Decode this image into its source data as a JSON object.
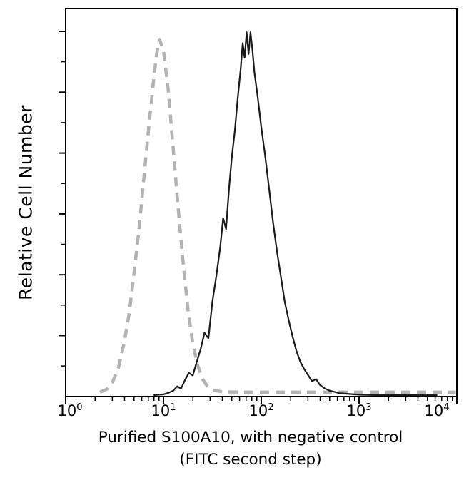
{
  "chart_data": {
    "type": "line",
    "title": "",
    "ylabel": "Relative Cell Number",
    "xlabel_line1": "Purified S100A10, with negative control",
    "xlabel_line2": "(FITC second step)",
    "x_scale": "log",
    "x_log_range": [
      0,
      4
    ],
    "y_range": [
      0,
      1.065
    ],
    "grid": false,
    "legend": "none",
    "x_ticks": [
      {
        "base": "10",
        "exp": "0"
      },
      {
        "base": "10",
        "exp": "1"
      },
      {
        "base": "10",
        "exp": "2"
      },
      {
        "base": "10",
        "exp": "3"
      },
      {
        "base": "10",
        "exp": "4"
      }
    ],
    "series": [
      {
        "name": "negative control (FITC second step)",
        "style": "dashed",
        "color": "#b3b3b3",
        "width": 4.5,
        "points": [
          [
            0.35,
            0.012
          ],
          [
            0.42,
            0.02
          ],
          [
            0.48,
            0.04
          ],
          [
            0.54,
            0.08
          ],
          [
            0.6,
            0.15
          ],
          [
            0.65,
            0.23
          ],
          [
            0.7,
            0.34
          ],
          [
            0.75,
            0.46
          ],
          [
            0.8,
            0.6
          ],
          [
            0.85,
            0.74
          ],
          [
            0.9,
            0.87
          ],
          [
            0.93,
            0.94
          ],
          [
            0.96,
            0.98
          ],
          [
            1.0,
            0.95
          ],
          [
            1.05,
            0.84
          ],
          [
            1.1,
            0.68
          ],
          [
            1.15,
            0.52
          ],
          [
            1.2,
            0.37
          ],
          [
            1.25,
            0.24
          ],
          [
            1.3,
            0.145
          ],
          [
            1.35,
            0.085
          ],
          [
            1.4,
            0.048
          ],
          [
            1.45,
            0.028
          ],
          [
            1.5,
            0.018
          ],
          [
            1.6,
            0.013
          ],
          [
            1.8,
            0.012
          ],
          [
            2.1,
            0.012
          ],
          [
            2.4,
            0.012
          ],
          [
            2.7,
            0.012
          ],
          [
            3.0,
            0.012
          ],
          [
            3.3,
            0.012
          ],
          [
            3.6,
            0.012
          ],
          [
            3.9,
            0.012
          ],
          [
            3.99,
            0.012
          ]
        ]
      },
      {
        "name": "Purified S100A10",
        "style": "solid",
        "color": "#1a1a1a",
        "width": 2.2,
        "points": [
          [
            0.9,
            0.004
          ],
          [
            1.0,
            0.006
          ],
          [
            1.05,
            0.01
          ],
          [
            1.1,
            0.016
          ],
          [
            1.14,
            0.028
          ],
          [
            1.18,
            0.022
          ],
          [
            1.22,
            0.045
          ],
          [
            1.26,
            0.065
          ],
          [
            1.3,
            0.058
          ],
          [
            1.34,
            0.095
          ],
          [
            1.38,
            0.13
          ],
          [
            1.42,
            0.175
          ],
          [
            1.46,
            0.16
          ],
          [
            1.5,
            0.26
          ],
          [
            1.54,
            0.33
          ],
          [
            1.58,
            0.41
          ],
          [
            1.61,
            0.49
          ],
          [
            1.64,
            0.46
          ],
          [
            1.67,
            0.57
          ],
          [
            1.7,
            0.66
          ],
          [
            1.73,
            0.73
          ],
          [
            1.76,
            0.82
          ],
          [
            1.79,
            0.9
          ],
          [
            1.81,
            0.97
          ],
          [
            1.83,
            0.93
          ],
          [
            1.85,
            1.0
          ],
          [
            1.87,
            0.94
          ],
          [
            1.89,
            1.0
          ],
          [
            1.91,
            0.95
          ],
          [
            1.93,
            0.89
          ],
          [
            1.96,
            0.83
          ],
          [
            2.0,
            0.74
          ],
          [
            2.04,
            0.66
          ],
          [
            2.08,
            0.57
          ],
          [
            2.12,
            0.48
          ],
          [
            2.16,
            0.4
          ],
          [
            2.2,
            0.33
          ],
          [
            2.24,
            0.26
          ],
          [
            2.28,
            0.21
          ],
          [
            2.32,
            0.165
          ],
          [
            2.36,
            0.125
          ],
          [
            2.4,
            0.095
          ],
          [
            2.44,
            0.075
          ],
          [
            2.48,
            0.058
          ],
          [
            2.52,
            0.042
          ],
          [
            2.56,
            0.048
          ],
          [
            2.6,
            0.032
          ],
          [
            2.65,
            0.022
          ],
          [
            2.7,
            0.016
          ],
          [
            2.75,
            0.013
          ],
          [
            2.8,
            0.009
          ],
          [
            2.9,
            0.007
          ],
          [
            3.0,
            0.005
          ],
          [
            3.2,
            0.004
          ],
          [
            3.5,
            0.004
          ],
          [
            3.8,
            0.004
          ]
        ]
      }
    ]
  }
}
